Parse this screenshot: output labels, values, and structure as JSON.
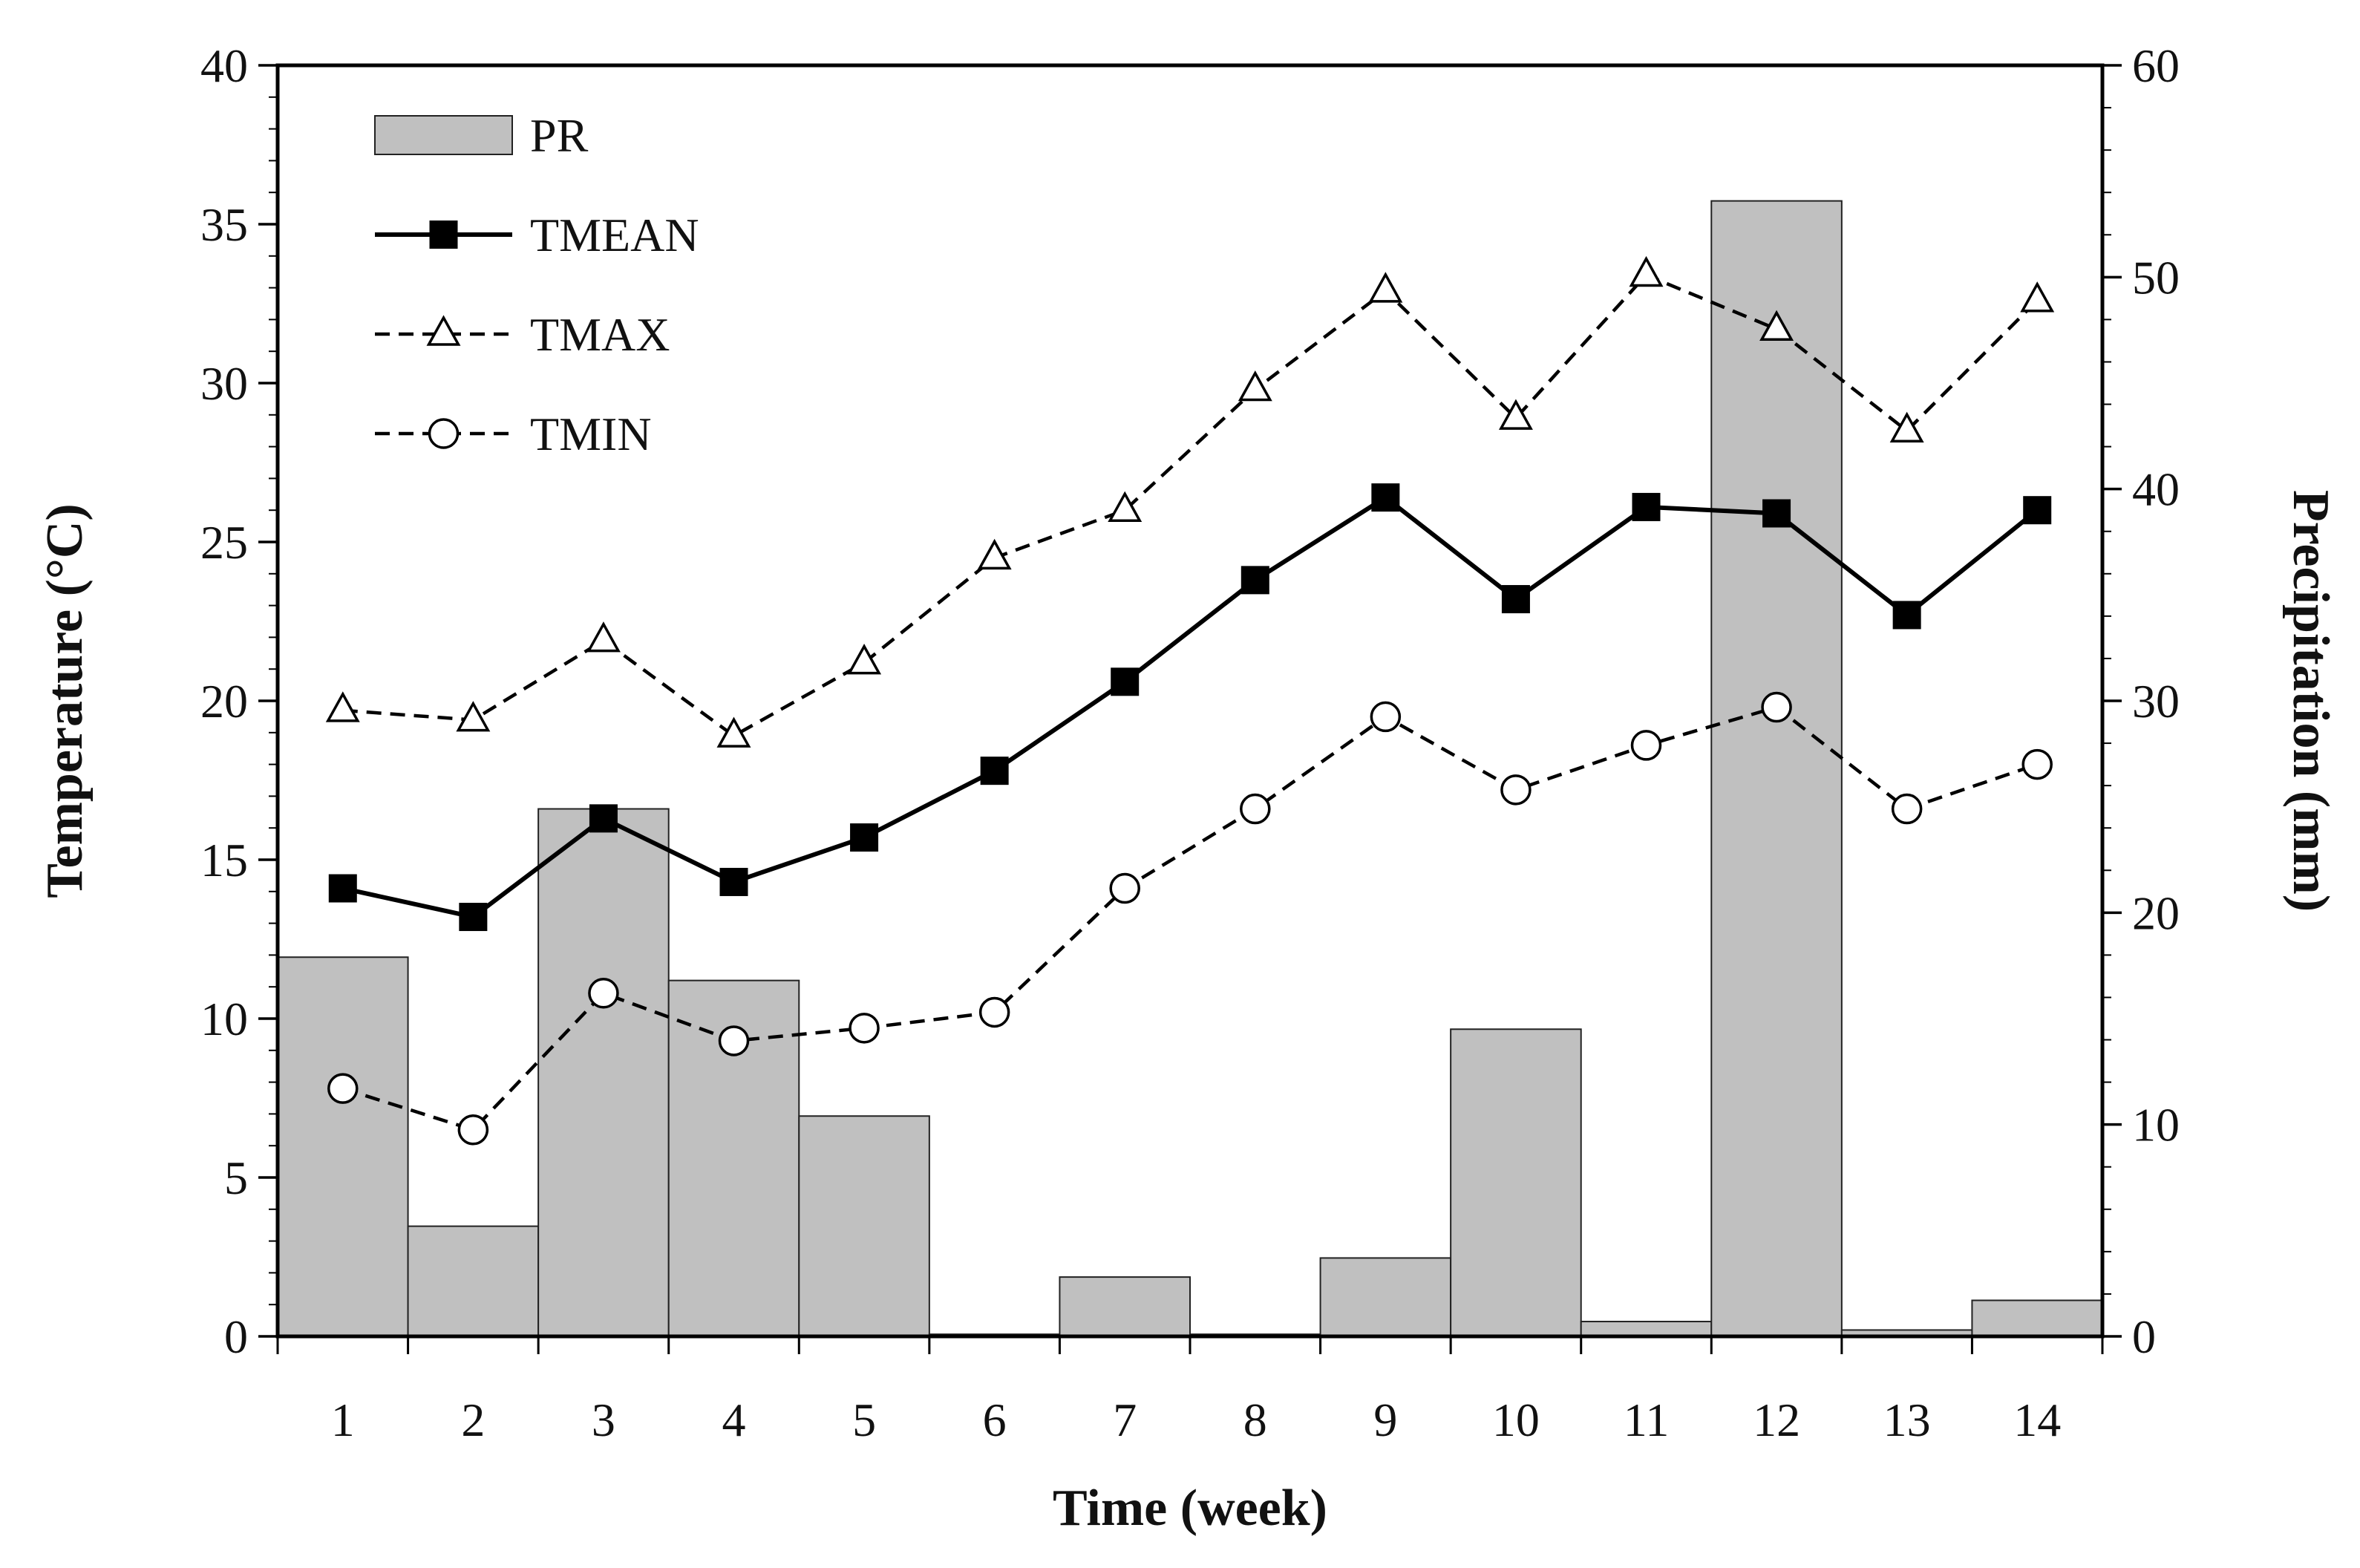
{
  "chart_data": {
    "type": "bar+line",
    "x": [
      1,
      2,
      3,
      4,
      5,
      6,
      7,
      8,
      9,
      10,
      11,
      12,
      13,
      14
    ],
    "xlabel": "Time (week)",
    "ylabel_left": "Temperature (°C)",
    "ylabel_right": "Precipitation (mm)",
    "ylim_left": [
      0,
      40
    ],
    "ylim_right": [
      0,
      60
    ],
    "yticks_left": [
      0,
      5,
      10,
      15,
      20,
      25,
      30,
      35,
      40
    ],
    "yticks_right": [
      0,
      10,
      20,
      30,
      40,
      50,
      60
    ],
    "grid": false,
    "legend_position": "top-left",
    "bars": {
      "name": "PR",
      "axis": "right",
      "color": "#c0c0c0",
      "values": [
        17.9,
        5.2,
        24.9,
        16.8,
        10.4,
        0.1,
        2.8,
        0.1,
        3.7,
        14.5,
        0.7,
        53.6,
        0.3,
        1.7
      ]
    },
    "series": [
      {
        "name": "TMEAN",
        "axis": "left",
        "marker": "square-filled",
        "line": "solid",
        "values": [
          14.1,
          13.2,
          16.3,
          14.3,
          15.7,
          17.8,
          20.6,
          23.8,
          26.4,
          23.2,
          26.1,
          25.9,
          22.7,
          26.0
        ]
      },
      {
        "name": "TMAX",
        "axis": "left",
        "marker": "triangle-open",
        "line": "dashed",
        "values": [
          19.7,
          19.4,
          21.9,
          18.9,
          21.2,
          24.5,
          26.0,
          29.8,
          32.9,
          28.9,
          33.4,
          31.7,
          28.5,
          32.6
        ]
      },
      {
        "name": "TMIN",
        "axis": "left",
        "marker": "circle-open",
        "line": "dashed",
        "values": [
          7.8,
          6.5,
          10.8,
          9.3,
          9.7,
          10.2,
          14.1,
          16.6,
          19.5,
          17.2,
          18.6,
          19.8,
          16.6,
          18.0
        ]
      }
    ],
    "legend": [
      "PR",
      "TMEAN",
      "TMAX",
      "TMIN"
    ]
  }
}
